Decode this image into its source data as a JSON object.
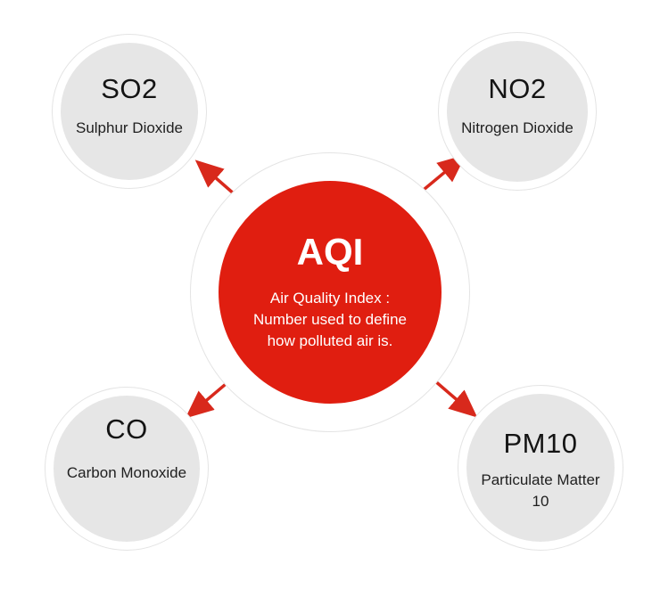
{
  "colors": {
    "accent": "#e01e10",
    "satellite_fill": "#e6e6e6",
    "ring_border": "#e4e4e4",
    "arrow": "#d8291c"
  },
  "center": {
    "title": "AQI",
    "desc_line1": "Air Quality Index :",
    "desc_line2": "Number used to define",
    "desc_line3": "how polluted air is."
  },
  "nodes": {
    "so2": {
      "title": "SO2",
      "subtitle": "Sulphur Dioxide"
    },
    "no2": {
      "title": "NO2",
      "subtitle": "Nitrogen Dioxide"
    },
    "co": {
      "title": "CO",
      "subtitle": "Carbon Monoxide"
    },
    "pm10": {
      "title": "PM10",
      "subtitle_line1": "Particulate Matter",
      "subtitle_line2": "10"
    }
  }
}
